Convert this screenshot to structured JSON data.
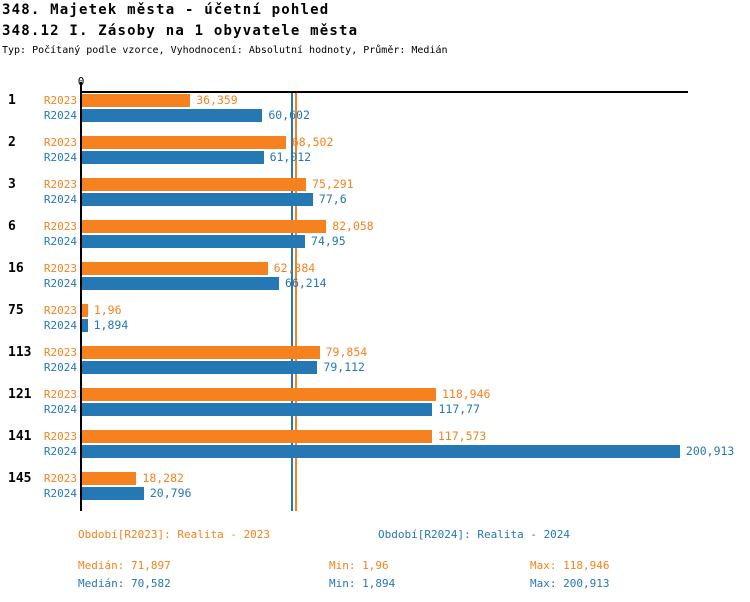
{
  "header": {
    "title": "348. Majetek města - účetní pohled",
    "subtitle": "348.12 I. Zásoby na 1 obyvatele města",
    "meta": "Typ: Počítaný podle vzorce, Vyhodnocení: Absolutní hodnoty, Průměr: Medián"
  },
  "chart_data": {
    "type": "bar",
    "orientation": "horizontal",
    "title": "348.12 I. Zásoby na 1 obyvatele města",
    "axis": {
      "origin_label": "0",
      "max": 203.3,
      "grid": false
    },
    "series": [
      {
        "name": "R2023",
        "color": "#F5821F",
        "median": 71.897
      },
      {
        "name": "R2024",
        "color": "#2478B4",
        "median": 70.582
      }
    ],
    "categories": [
      "1",
      "2",
      "3",
      "6",
      "16",
      "75",
      "113",
      "121",
      "141",
      "145"
    ],
    "rows": [
      {
        "num": "1",
        "v2023": 36.359,
        "l2023": "36,359",
        "v2024": 60.602,
        "l2024": "60,602"
      },
      {
        "num": "2",
        "v2023": 68.502,
        "l2023": "68,502",
        "v2024": 61.012,
        "l2024": "61,012"
      },
      {
        "num": "3",
        "v2023": 75.291,
        "l2023": "75,291",
        "v2024": 77.6,
        "l2024": "77,6"
      },
      {
        "num": "6",
        "v2023": 82.058,
        "l2023": "82,058",
        "v2024": 74.95,
        "l2024": "74,95"
      },
      {
        "num": "16",
        "v2023": 62.384,
        "l2023": "62,384",
        "v2024": 66.214,
        "l2024": "66,214"
      },
      {
        "num": "75",
        "v2023": 1.96,
        "l2023": "1,96",
        "v2024": 1.894,
        "l2024": "1,894"
      },
      {
        "num": "113",
        "v2023": 79.854,
        "l2023": "79,854",
        "v2024": 79.112,
        "l2024": "79,112"
      },
      {
        "num": "121",
        "v2023": 118.946,
        "l2023": "118,946",
        "v2024": 117.77,
        "l2024": "117,77"
      },
      {
        "num": "141",
        "v2023": 117.573,
        "l2023": "117,573",
        "v2024": 200.913,
        "l2024": "200,913"
      },
      {
        "num": "145",
        "v2023": 18.282,
        "l2023": "18,282",
        "v2024": 20.796,
        "l2024": "20,796"
      }
    ]
  },
  "footer": {
    "periods": [
      {
        "label": "Období[R2023]: Realita - 2023",
        "color": "#F5821F"
      },
      {
        "label": "Období[R2024]: Realita - 2024",
        "color": "#2478B4"
      }
    ],
    "stats": [
      {
        "median": "Medián: 71,897",
        "min": "Min: 1,96",
        "max": "Max: 118,946",
        "color": "#F5821F"
      },
      {
        "median": "Medián: 70,582",
        "min": "Min: 1,894",
        "max": "Max: 200,913",
        "color": "#2478B4"
      }
    ]
  }
}
